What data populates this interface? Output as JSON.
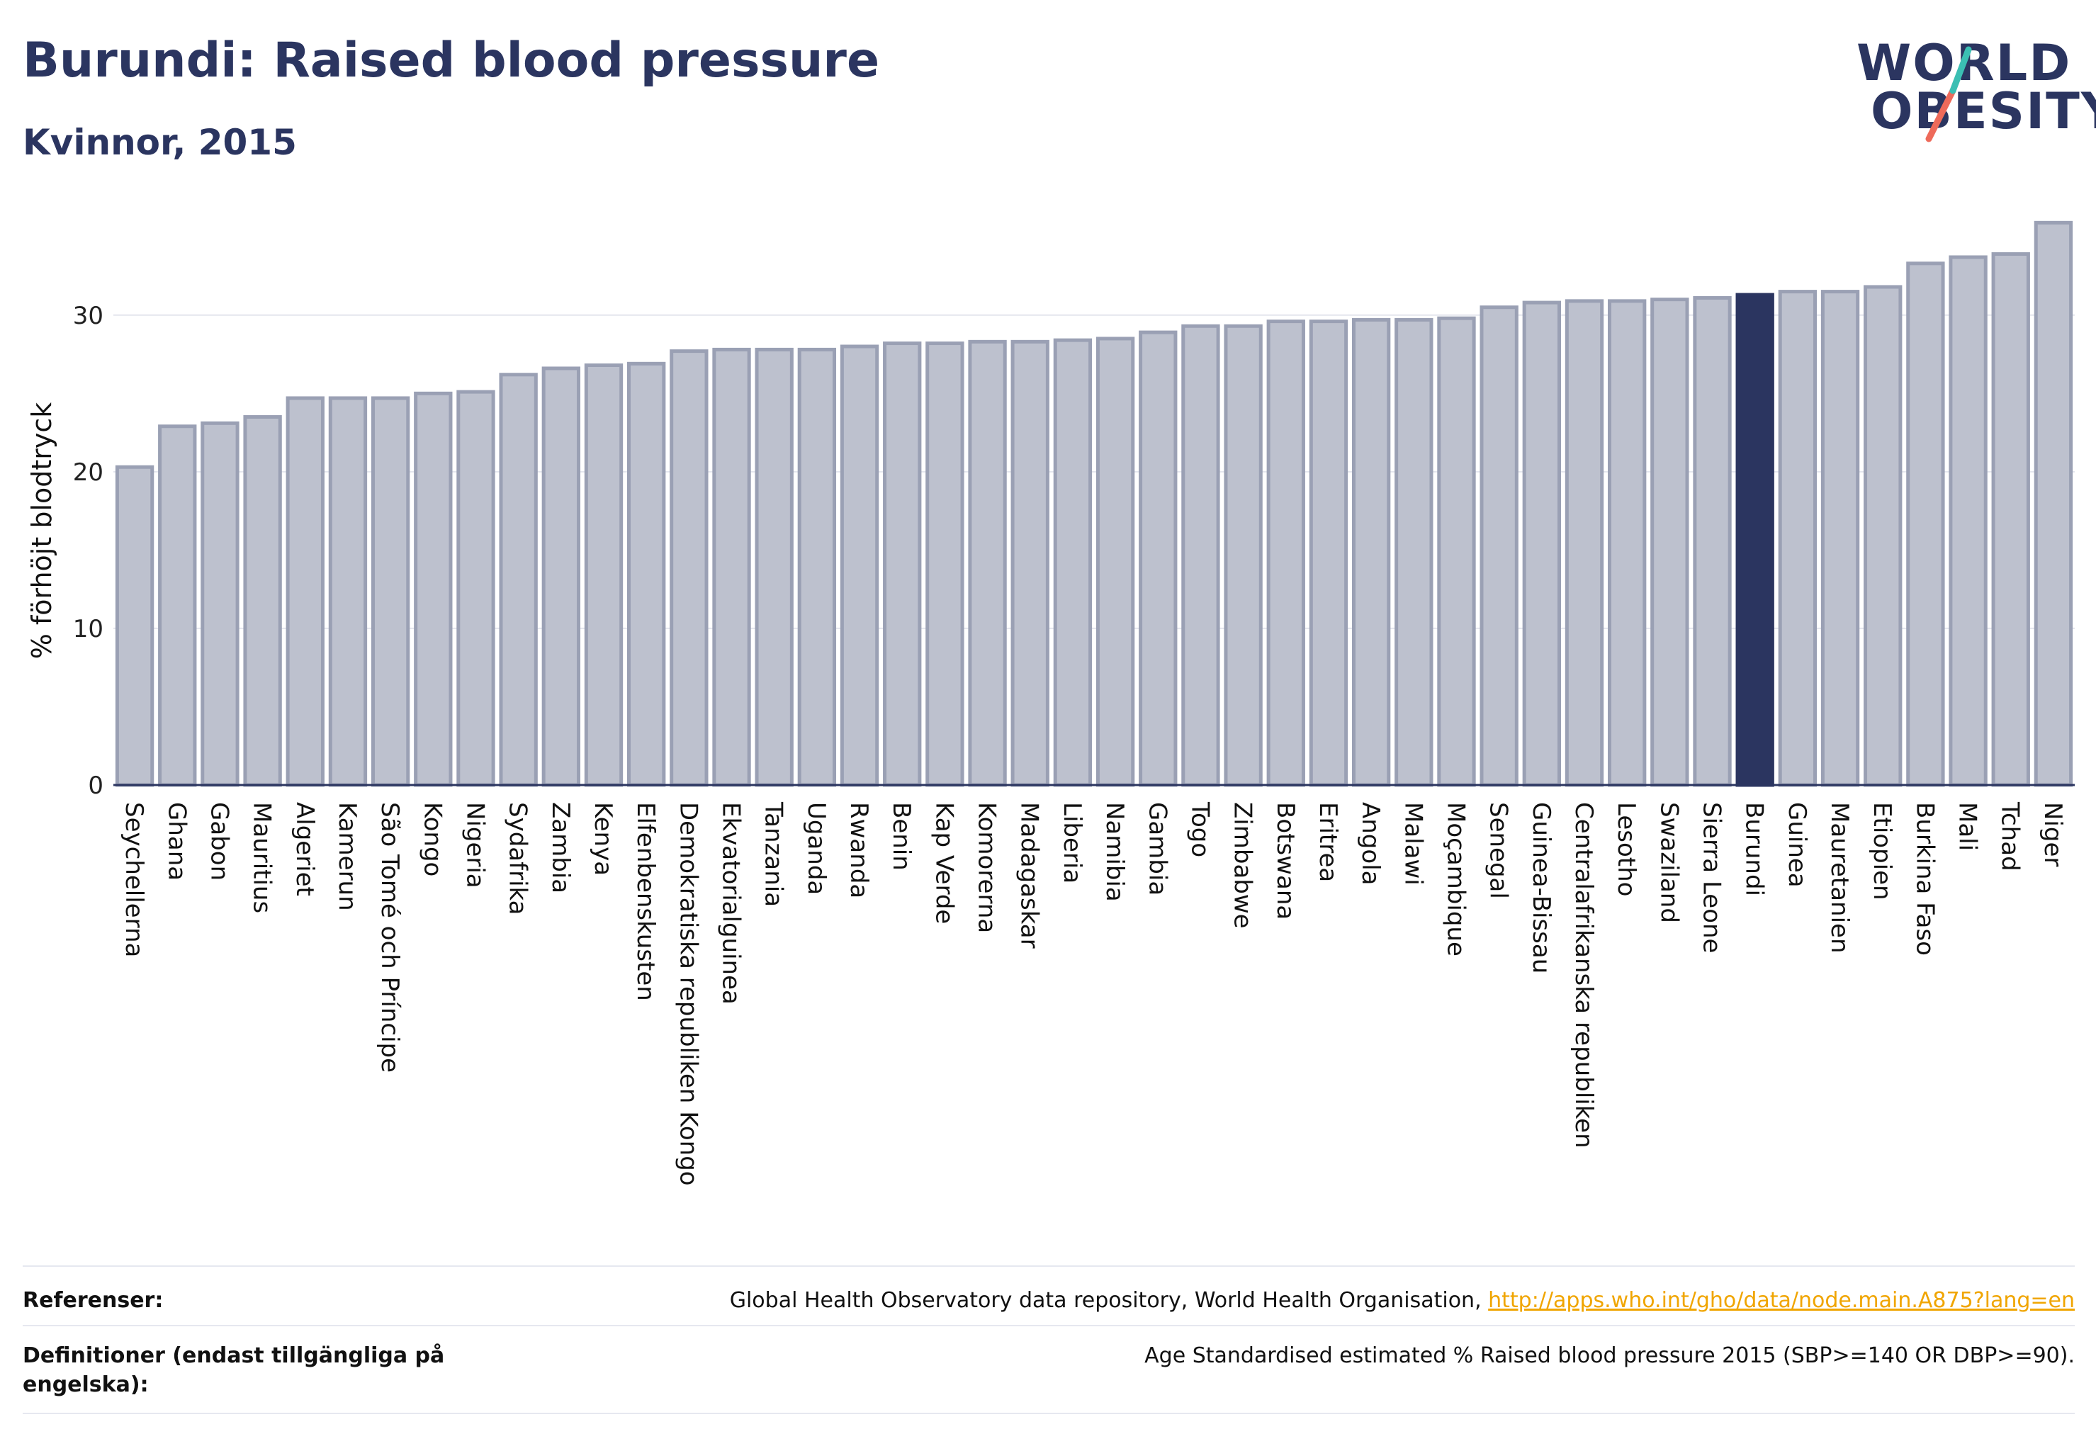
{
  "header": {
    "title": "Burundi: Raised blood pressure",
    "subtitle": "Kvinnor, 2015"
  },
  "logo": {
    "line1": "WORLD",
    "line2": "OBESITY"
  },
  "colors": {
    "highlight": "#2b3560",
    "bar_fill": "#bdc1ce",
    "bar_stroke": "#9aa0b4",
    "title": "#2b3560",
    "logo_teal": "#3bbfb3",
    "logo_coral": "#ee6a5a",
    "link": "#f0a500"
  },
  "chart_data": {
    "type": "bar",
    "ylabel": "% förhöjt blodtryck",
    "ylim": [
      0,
      37
    ],
    "yticks": [
      "0",
      "10",
      "20",
      "30"
    ],
    "grid": true,
    "highlight": "Burundi",
    "categories": [
      "Seychellerna",
      "Ghana",
      "Gabon",
      "Mauritius",
      "Algeriet",
      "Kamerun",
      "São Tomé och Príncipe",
      "Kongo",
      "Nigeria",
      "Sydafrika",
      "Zambia",
      "Kenya",
      "Elfenbenskusten",
      "Demokratiska republiken Kongo",
      "Ekvatorialguinea",
      "Tanzania",
      "Uganda",
      "Rwanda",
      "Benin",
      "Kap Verde",
      "Komorerna",
      "Madagaskar",
      "Liberia",
      "Namibia",
      "Gambia",
      "Togo",
      "Zimbabwe",
      "Botswana",
      "Eritrea",
      "Angola",
      "Malawi",
      "Moçambique",
      "Senegal",
      "Guinea-Bissau",
      "Centralafrikanska republiken",
      "Lesotho",
      "Swaziland",
      "Sierra Leone",
      "Burundi",
      "Guinea",
      "Mauretanien",
      "Etiopien",
      "Burkina Faso",
      "Mali",
      "Tchad",
      "Niger"
    ],
    "values": [
      20.3,
      22.9,
      23.1,
      23.5,
      24.7,
      24.7,
      24.7,
      25.0,
      25.1,
      26.2,
      26.6,
      26.8,
      26.9,
      27.7,
      27.8,
      27.8,
      27.8,
      28.0,
      28.2,
      28.2,
      28.3,
      28.3,
      28.4,
      28.5,
      28.9,
      29.3,
      29.3,
      29.6,
      29.6,
      29.7,
      29.7,
      29.8,
      30.5,
      30.8,
      30.9,
      30.9,
      31.0,
      31.1,
      31.3,
      31.5,
      31.5,
      31.8,
      33.3,
      33.7,
      33.9,
      35.9
    ]
  },
  "footer": {
    "ref_label": "Referenser:",
    "ref_text": "Global Health Observatory data repository, World Health Organisation, ",
    "ref_link": "http://apps.who.int/gho/data/node.main.A875?lang=en",
    "def_label": "Definitioner (endast tillgängliga på engelska):",
    "def_text": "Age Standardised estimated % Raised blood pressure 2015 (SBP>=140 OR DBP>=90)."
  }
}
